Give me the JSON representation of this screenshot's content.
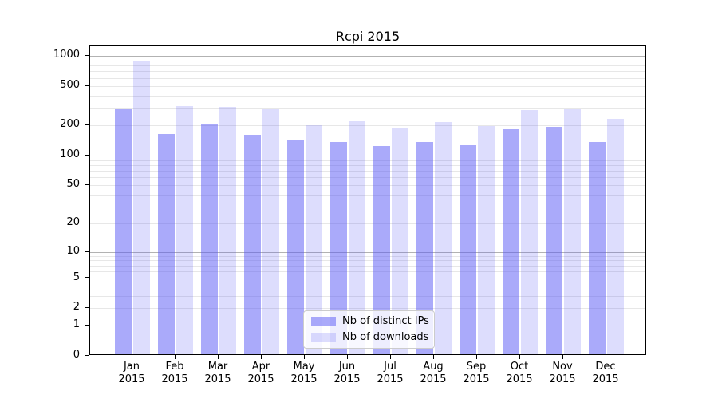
{
  "title": "Rcpi 2015",
  "chart_data": {
    "type": "bar",
    "title": "Rcpi 2015",
    "categories": [
      "Jan",
      "Feb",
      "Mar",
      "Apr",
      "May",
      "Jun",
      "Jul",
      "Aug",
      "Sep",
      "Oct",
      "Nov",
      "Dec"
    ],
    "category_year": "2015",
    "series": [
      {
        "name": "Nb of distinct IPs",
        "color": "rgba(85,85,245,0.5)",
        "values": [
          288,
          159,
          200,
          156,
          137,
          132,
          121,
          133,
          123,
          178,
          188,
          132
        ]
      },
      {
        "name": "Nb of downloads",
        "color": "rgba(85,85,245,0.2)",
        "values": [
          853,
          304,
          299,
          280,
          195,
          215,
          179,
          210,
          191,
          276,
          283,
          225
        ]
      }
    ],
    "y_axis": {
      "scale": "log1p",
      "ylim": [
        0,
        1000
      ],
      "ticks": [
        0,
        1,
        2,
        5,
        10,
        20,
        50,
        100,
        200,
        500,
        1000
      ],
      "major_gridlines": [
        1,
        10,
        100,
        1000
      ],
      "minor_gridlines": [
        2,
        3,
        4,
        5,
        6,
        7,
        8,
        9,
        20,
        30,
        40,
        50,
        60,
        70,
        80,
        90,
        200,
        300,
        400,
        500,
        600,
        700,
        800,
        900
      ]
    },
    "grid": true,
    "legend_position": "lower center"
  },
  "legend": {
    "items": [
      {
        "label": "Nb of distinct IPs",
        "swatch": "rgba(85,85,245,0.5)"
      },
      {
        "label": "Nb of downloads",
        "swatch": "rgba(85,85,245,0.2)"
      }
    ]
  },
  "colors": {
    "background": "#ffffff",
    "axis_border": "#000000",
    "text": "#000000",
    "grid_major": "#b2b2b2",
    "grid_minor": "#e7e7e7",
    "bar_distinct_ips": "rgba(85,85,245,0.5)",
    "bar_downloads": "rgba(85,85,245,0.2)",
    "legend_border": "#cccccc",
    "legend_bg": "rgba(255,255,255,0.8)"
  }
}
